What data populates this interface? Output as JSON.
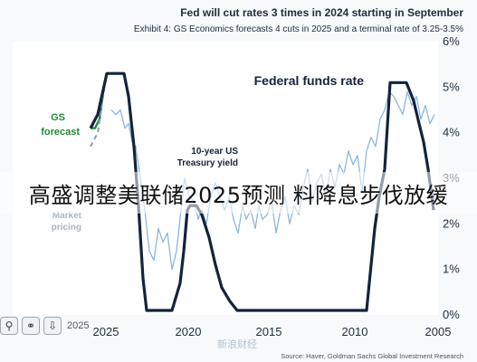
{
  "header": {
    "title": "Fed will cut rates 3 times in 2024 starting in September",
    "subtitle": "Exhibit 4: GS Economics forecasts 4 cuts in 2025 and a terminal rate of 3.25-3.5%"
  },
  "chart_data": {
    "type": "line",
    "x_axis_reversed": true,
    "x_tick_labels": [
      "2025",
      "2020",
      "2015",
      "2010",
      "2005"
    ],
    "y_tick_labels": [
      "6%",
      "5%",
      "4%",
      "3%",
      "2%",
      "1%",
      "0%"
    ],
    "ylim": [
      0,
      6
    ],
    "y_unit": "%",
    "series": [
      {
        "name": "Federal funds rate",
        "color": "#14233c",
        "style": "solid-thick"
      },
      {
        "name": "10-year US Treasury yield",
        "color": "#8ab8dc",
        "style": "solid-thin"
      },
      {
        "name": "GS forecast",
        "color": "#1f8a34",
        "style": "solid"
      },
      {
        "name": "Market pricing",
        "color": "#8e9ba8",
        "style": "dashed"
      }
    ],
    "annotations": {
      "ffr": "Federal funds rate",
      "tsy_line1": "10-year US",
      "tsy_line2": "Treasury yield",
      "gs_line1": "GS",
      "gs_line2": "forecast",
      "mkt_line1": "Market",
      "mkt_line2": "pricing"
    }
  },
  "source": "Source: Haver, Goldman Sachs Global Investment Research",
  "watermark": "新浪财经",
  "overlay_title": "高盛调整美联储2025预测 料降息步伐放缓",
  "toolbar": {
    "zoom_icon": "zoom-icon",
    "share_icon": "share-icon",
    "download_icon": "download-icon",
    "label": "2025"
  },
  "colors": {
    "ffr": "#14233c",
    "tsy": "#8ab8dc",
    "gs": "#1f8a34",
    "market": "#8e9ba8",
    "header": "#1f2d3d"
  }
}
